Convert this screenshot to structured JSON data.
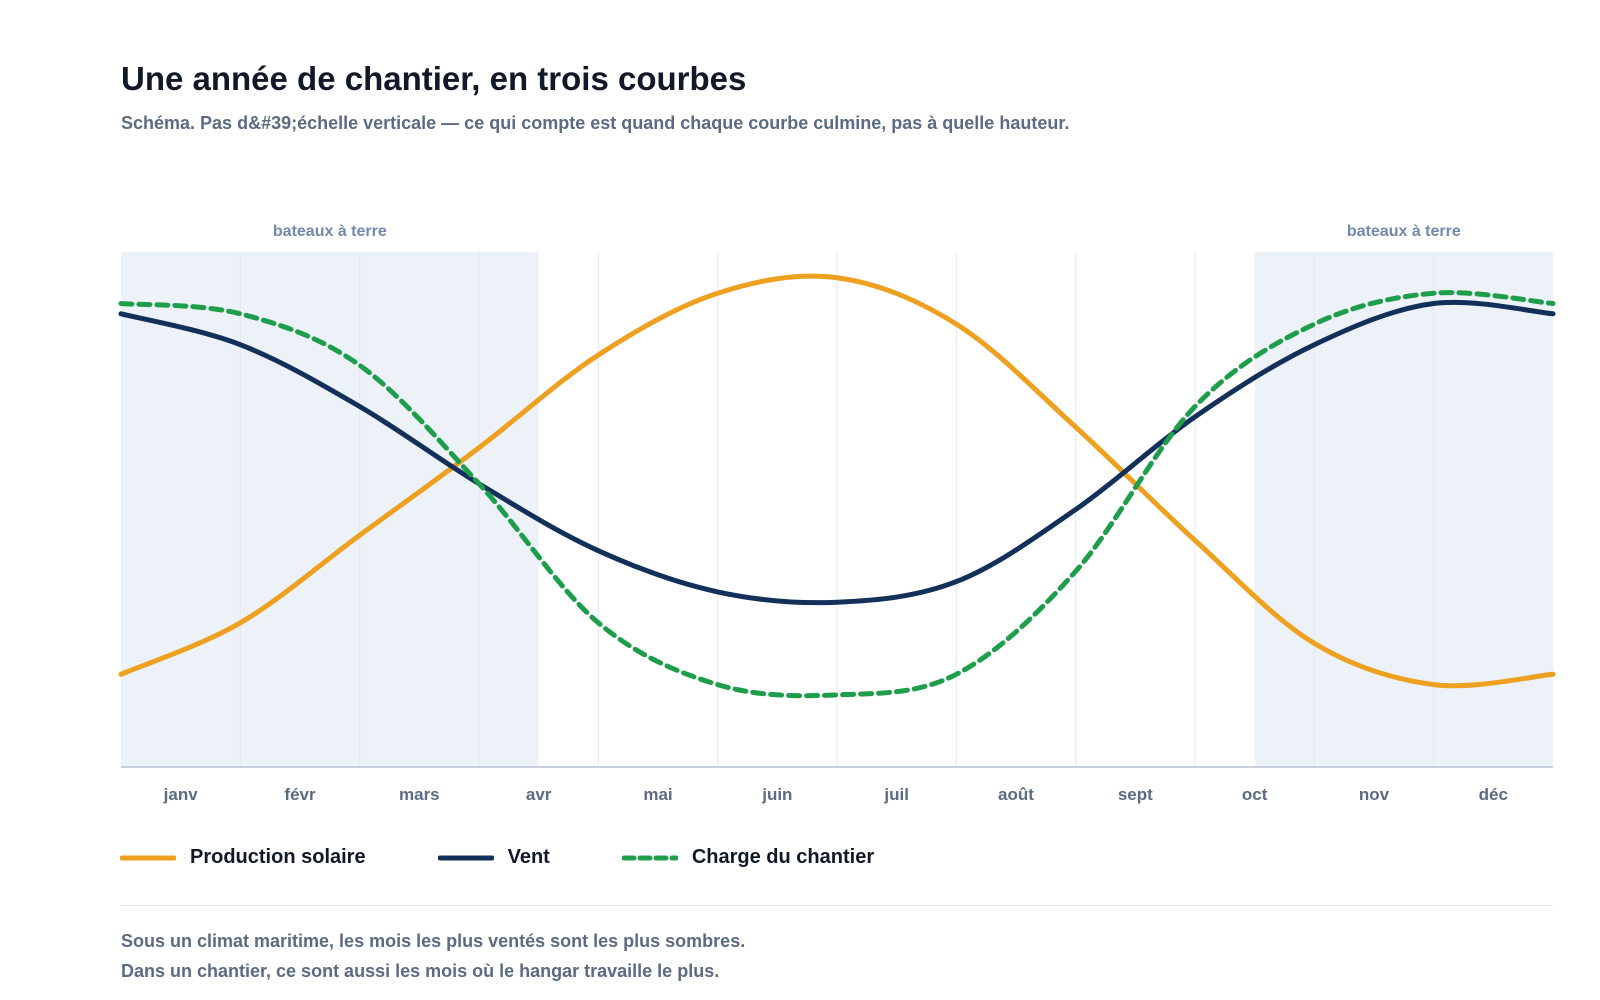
{
  "header": {
    "title": "Une année de chantier, en trois courbes",
    "subtitle": "Schéma. Pas d&#39;échelle verticale — ce qui compte est quand chaque courbe culmine, pas à quelle hauteur."
  },
  "chart_data": {
    "type": "line",
    "title": "Une année de chantier, en trois courbes",
    "subtitle": "Schéma. Pas d&#39;échelle verticale — ce qui compte est quand chaque courbe culmine, pas à quelle hauteur.",
    "xlabel": "",
    "ylabel": "",
    "x_ticks": [
      "janv",
      "févr",
      "mars",
      "avr",
      "mai",
      "juin",
      "juil",
      "août",
      "sept",
      "oct",
      "nov",
      "déc"
    ],
    "x_range": [
      0,
      12
    ],
    "y_range": [
      0,
      100
    ],
    "grid": true,
    "y_axis_labels": false,
    "legend_position": "bottom",
    "shaded_regions": [
      {
        "label": "bateaux à terre",
        "x_start": 0,
        "x_end": 3.5
      },
      {
        "label": "bateaux à terre",
        "x_start": 9.5,
        "x_end": 12
      }
    ],
    "series": [
      {
        "name": "Production solaire",
        "color": "#eea020",
        "style": "solid",
        "x": [
          0,
          1,
          2,
          3,
          4,
          5,
          6,
          7,
          8,
          9,
          10,
          11,
          12
        ],
        "y": [
          18,
          28,
          45,
          62,
          80,
          92,
          95,
          86,
          66,
          44,
          24,
          16,
          18
        ]
      },
      {
        "name": "Vent",
        "color": "#13305a",
        "style": "solid",
        "x": [
          0,
          1,
          2,
          3,
          4,
          5,
          6,
          7,
          8,
          9,
          10,
          11,
          12
        ],
        "y": [
          88,
          82,
          70,
          55,
          42,
          34,
          32,
          36,
          50,
          68,
          82,
          90,
          88
        ]
      },
      {
        "name": "Charge du chantier",
        "color": "#1e9e4a",
        "style": "dashed",
        "x": [
          0,
          1,
          2,
          3,
          4,
          5,
          6,
          7,
          8,
          9,
          10,
          11,
          12
        ],
        "y": [
          90,
          88,
          78,
          55,
          28,
          16,
          14,
          18,
          38,
          70,
          86,
          92,
          90
        ]
      }
    ]
  },
  "legend": {
    "items": [
      {
        "label": "Production solaire",
        "color": "#eea020",
        "dashed": false
      },
      {
        "label": "Vent",
        "color": "#13305a",
        "dashed": false
      },
      {
        "label": "Charge du chantier",
        "color": "#1e9e4a",
        "dashed": true
      }
    ]
  },
  "footer": {
    "line1": "Sous un climat maritime, les mois les plus ventés sont les plus sombres.",
    "line2": "Dans un chantier, ce sont aussi les mois où le hangar travaille le plus."
  },
  "colors": {
    "band_fill": "#edf2f8",
    "band_label": "#7089ad",
    "gridline": "#e3e8ef",
    "axis": "#c6cfdb",
    "tick_label": "#5b6b82"
  }
}
